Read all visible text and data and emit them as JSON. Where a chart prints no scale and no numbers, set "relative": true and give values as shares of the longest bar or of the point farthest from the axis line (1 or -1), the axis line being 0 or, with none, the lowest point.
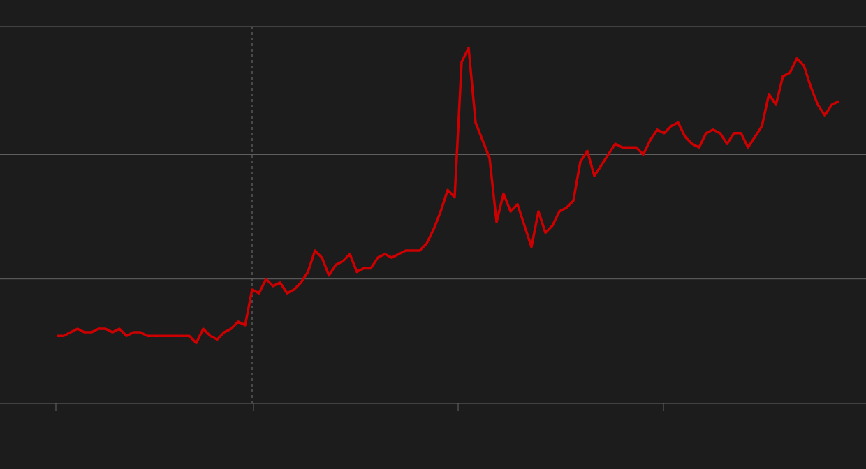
{
  "chart_data": {
    "type": "line",
    "relative": true,
    "color": "#cc0000",
    "ref_lines": [
      {
        "axis": "y",
        "value": 0.35,
        "color": "#666666"
      },
      {
        "axis": "y",
        "value": 0.7,
        "color": "#666666"
      },
      {
        "axis": "y",
        "value": 1.06,
        "color": "#666666"
      }
    ],
    "categories": [
      null,
      null,
      null,
      null,
      null,
      null,
      null,
      null,
      null,
      null,
      null,
      null,
      null,
      null,
      null,
      null,
      null,
      null,
      null,
      null,
      null,
      null,
      null,
      null,
      null,
      null,
      null,
      null,
      null,
      null,
      null,
      null,
      null,
      null,
      null,
      null,
      null,
      null,
      null,
      null,
      null,
      null,
      null,
      null,
      null,
      null,
      null,
      null,
      null,
      null,
      null,
      null,
      null,
      null,
      null,
      null,
      null,
      null,
      null,
      null,
      null,
      null,
      null,
      null,
      null,
      null,
      null,
      null,
      null,
      null,
      null,
      null,
      null,
      null,
      null,
      null,
      null,
      null,
      null,
      null,
      null,
      null,
      null,
      null,
      null,
      null,
      null,
      null,
      null,
      null,
      null,
      null,
      null,
      null,
      null,
      null,
      null,
      null,
      null,
      null,
      null,
      null,
      null,
      null,
      null,
      null,
      null,
      null,
      null,
      null,
      null,
      null,
      null
    ],
    "values": [
      0.19,
      0.19,
      0.2,
      0.21,
      0.2,
      0.2,
      0.21,
      0.21,
      0.2,
      0.21,
      0.19,
      0.2,
      0.2,
      0.19,
      0.19,
      0.19,
      0.19,
      0.19,
      0.19,
      0.19,
      0.17,
      0.21,
      0.19,
      0.18,
      0.2,
      0.21,
      0.23,
      0.22,
      0.32,
      0.31,
      0.35,
      0.33,
      0.34,
      0.31,
      0.32,
      0.34,
      0.37,
      0.43,
      0.41,
      0.36,
      0.39,
      0.4,
      0.42,
      0.37,
      0.38,
      0.38,
      0.41,
      0.42,
      0.41,
      0.42,
      0.43,
      0.43,
      0.43,
      0.45,
      0.49,
      0.54,
      0.6,
      0.58,
      0.96,
      1,
      0.79,
      0.74,
      0.69,
      0.51,
      0.59,
      0.54,
      0.56,
      0.5,
      0.44,
      0.54,
      0.48,
      0.5,
      0.54,
      0.55,
      0.57,
      0.68,
      0.71,
      0.64,
      0.67,
      0.7,
      0.73,
      0.72,
      0.72,
      0.72,
      0.7,
      0.74,
      0.77,
      0.76,
      0.78,
      0.79,
      0.75,
      0.73,
      0.72,
      0.76,
      0.77,
      0.76,
      0.73,
      0.76,
      0.76,
      0.72,
      0.75,
      0.78,
      0.87,
      0.84,
      0.92,
      0.93,
      0.97,
      0.95,
      0.89,
      0.84,
      0.81,
      0.84,
      0.85
    ]
  }
}
